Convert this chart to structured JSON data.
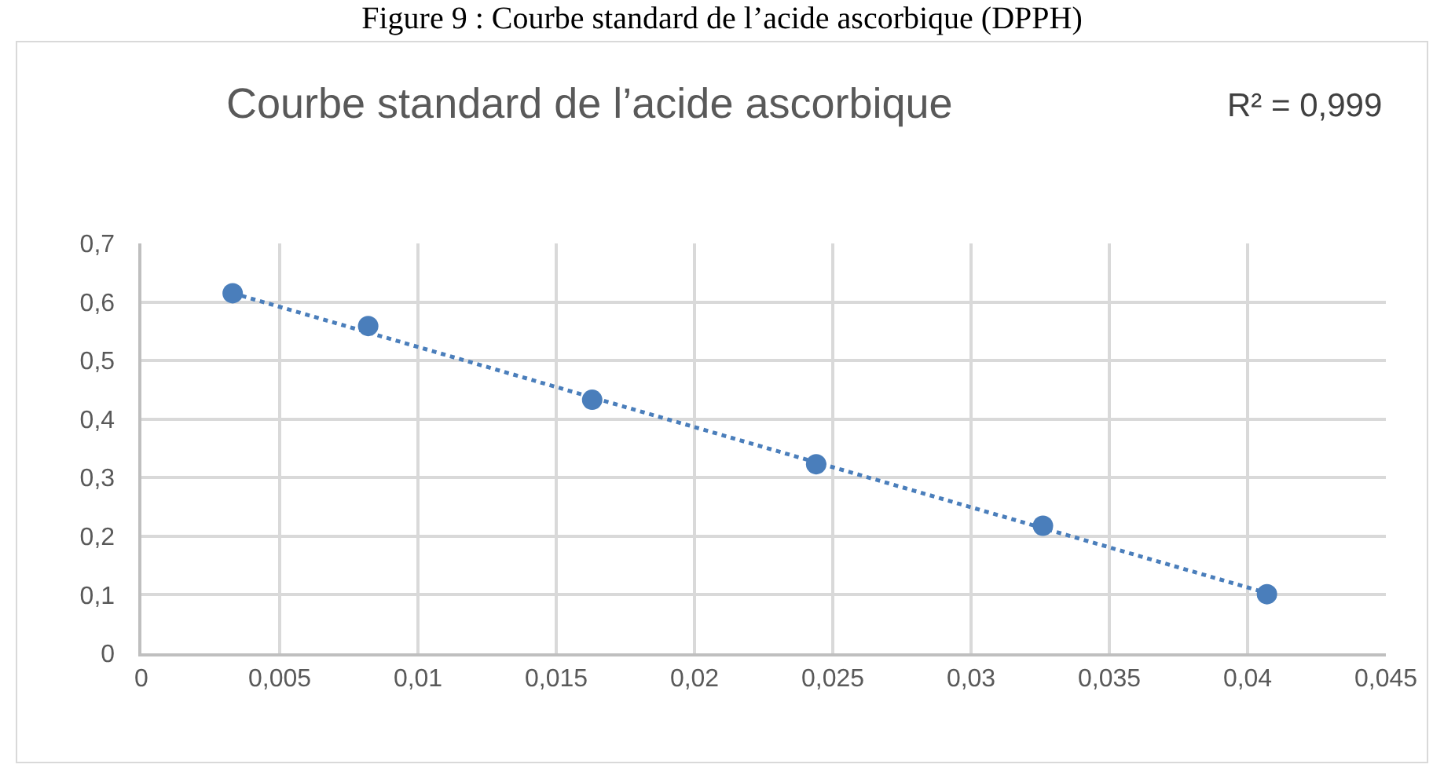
{
  "chart_data": {
    "type": "scatter",
    "title": "Courbe standard de l’acide ascorbique",
    "subtitle": "Figure 9 : Courbe standard de l’acide ascorbique  (DPPH)",
    "annotations": [
      "R² = 0,999"
    ],
    "series": [
      {
        "color": "#4a7ebb",
        "marker": "circle",
        "x": [
          0.0033,
          0.0082,
          0.0163,
          0.0244,
          0.0326,
          0.0407
        ],
        "values": [
          0.615,
          0.559,
          0.433,
          0.323,
          0.218,
          0.101
        ]
      },
      {
        "type": "line",
        "color": "#4a7ebb",
        "marker": "none",
        "line_style": "dotted",
        "x": [
          0.0033,
          0.0407
        ],
        "values": [
          0.615,
          0.103
        ]
      }
    ],
    "xlim": [
      0,
      0.045
    ],
    "xticks": [
      0,
      {
        "value": 0.005,
        "label": "0,005"
      },
      {
        "value": 0.01,
        "label": "0,01"
      },
      {
        "value": 0.015,
        "label": "0,015"
      },
      {
        "value": 0.02,
        "label": "0,02"
      },
      {
        "value": 0.025,
        "label": "0,025"
      },
      {
        "value": 0.03,
        "label": "0,03"
      },
      {
        "value": 0.035,
        "label": "0,035"
      },
      {
        "value": 0.04,
        "label": "0,04"
      },
      {
        "value": 0.045,
        "label": "0,045"
      }
    ],
    "ylim": [
      0,
      0.7
    ],
    "yticks": [
      0,
      {
        "value": 0.1,
        "label": "0,1"
      },
      {
        "value": 0.2,
        "label": "0,2"
      },
      {
        "value": 0.3,
        "label": "0,3"
      },
      {
        "value": 0.4,
        "label": "0,4"
      },
      {
        "value": 0.5,
        "label": "0,5"
      },
      {
        "value": 0.6,
        "label": "0,6"
      },
      {
        "value": 0.7,
        "label": "0,7"
      }
    ],
    "grid": true
  }
}
